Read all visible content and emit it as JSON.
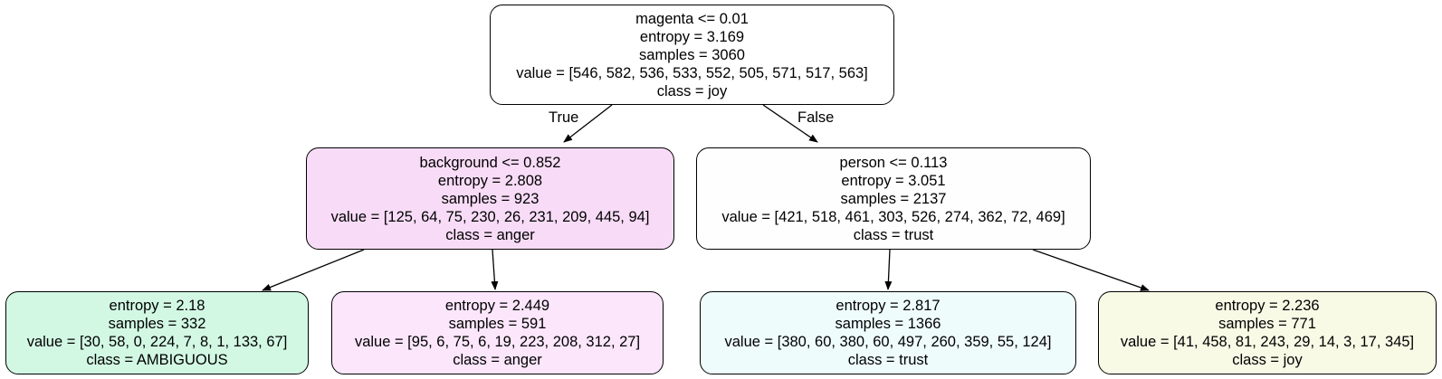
{
  "nodes": {
    "root": {
      "split": "magenta <= 0.01",
      "entropy": "entropy = 3.169",
      "samples": "samples = 3060",
      "value": "value = [546, 582, 536, 533, 552, 505, 571, 517, 563]",
      "class": "class = joy",
      "fill": "#ffffff"
    },
    "left": {
      "split": "background <= 0.852",
      "entropy": "entropy = 2.808",
      "samples": "samples = 923",
      "value": "value = [125, 64, 75, 230, 26, 231, 209, 445, 94]",
      "class": "class = anger",
      "fill": "#f8dcf7"
    },
    "right": {
      "split": "person <= 0.113",
      "entropy": "entropy = 3.051",
      "samples": "samples = 2137",
      "value": "value = [421, 518, 461, 303, 526, 274, 362, 72, 469]",
      "class": "class = trust",
      "fill": "#fefeff"
    },
    "left_left": {
      "entropy": "entropy = 2.18",
      "samples": "samples = 332",
      "value": "value = [30, 58, 0, 224, 7, 8, 1, 133, 67]",
      "class": "class = AMBIGUOUS",
      "fill": "#d2f8e4"
    },
    "left_right": {
      "entropy": "entropy = 2.449",
      "samples": "samples = 591",
      "value": "value = [95, 6, 75, 6, 19, 223, 208, 312, 27]",
      "class": "class = anger",
      "fill": "#fbe6fb"
    },
    "right_left": {
      "entropy": "entropy = 2.817",
      "samples": "samples = 1366",
      "value": "value = [380, 60, 380, 60, 497, 260, 359, 55, 124]",
      "class": "class = trust",
      "fill": "#effcfc"
    },
    "right_right": {
      "entropy": "entropy = 2.236",
      "samples": "samples = 771",
      "value": "value = [41, 458, 81, 243, 29, 14, 3, 17, 345]",
      "class": "class = joy",
      "fill": "#f8fae6"
    }
  },
  "edge_labels": {
    "true_label": "True",
    "false_label": "False"
  },
  "colors": {
    "stroke": "#000000"
  }
}
